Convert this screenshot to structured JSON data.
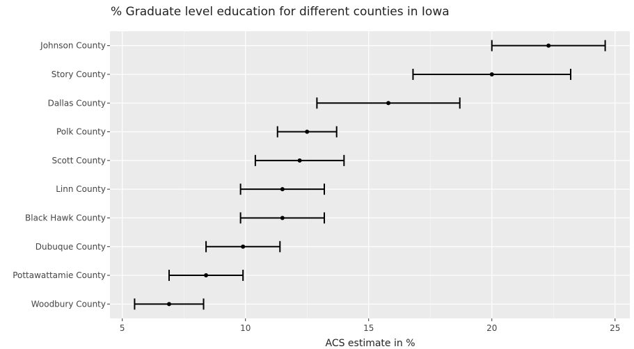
{
  "chart_data": {
    "type": "scatter",
    "title": "% Graduate level education for different counties in Iowa",
    "xlabel": "ACS estimate in %",
    "ylabel": "",
    "xlim": [
      4.5,
      25.6
    ],
    "xticks": [
      5,
      10,
      15,
      20,
      25
    ],
    "grid": true,
    "legend": "none",
    "colors": {
      "panel": "#ebebeb",
      "grid": "#ffffff",
      "mark": "#000000"
    },
    "categories": [
      "Johnson County",
      "Story County",
      "Dallas County",
      "Polk County",
      "Scott County",
      "Linn County",
      "Black Hawk County",
      "Dubuque County",
      "Pottawattamie County",
      "Woodbury County"
    ],
    "series": [
      {
        "values": [
          22.3,
          20.0,
          15.8,
          12.5,
          12.2,
          11.5,
          11.5,
          9.9,
          8.4,
          6.9
        ],
        "lower": [
          20.0,
          16.8,
          12.9,
          11.3,
          10.4,
          9.8,
          9.8,
          8.4,
          6.9,
          5.5
        ],
        "upper": [
          24.6,
          23.2,
          18.7,
          13.7,
          14.0,
          13.2,
          13.2,
          11.4,
          9.9,
          8.3
        ]
      }
    ]
  }
}
